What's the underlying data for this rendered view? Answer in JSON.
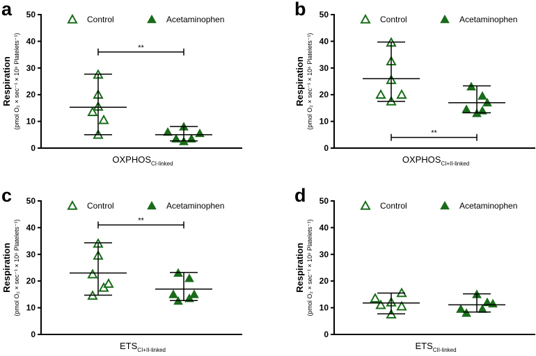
{
  "colors": {
    "marker": "#1a6b1a",
    "axis": "#000000"
  },
  "chart_data": [
    {
      "type": "scatter",
      "panel": "a",
      "ylabel": "Respiration",
      "ylabel_sub": "(pmol O₂ × sec⁻¹ × 10⁶ Platelets⁻¹)",
      "xlabel": "OXPHOS",
      "xlabel_sub": "CI-linked",
      "ylim": [
        0,
        50
      ],
      "yticks": [
        "0",
        "10",
        "20",
        "30",
        "40",
        "50"
      ],
      "legend": [
        "Control",
        "Acetaminophen"
      ],
      "legend_position": "top",
      "series": [
        {
          "name": "Control",
          "values": [
            27.5,
            20,
            15.5,
            13.5,
            10.5,
            5
          ],
          "mean": 15.3,
          "low": 5,
          "high": 27.7
        },
        {
          "name": "Acetaminophen",
          "values": [
            6,
            3.5,
            2.5,
            8,
            3.5,
            5.5
          ],
          "mean": 5,
          "low": 2.7,
          "high": 8.1
        }
      ],
      "significance": {
        "label": "**",
        "y": 36
      }
    },
    {
      "type": "scatter",
      "panel": "b",
      "ylabel": "Respiration",
      "ylabel_sub": "(pmol O₂ × sec⁻¹ × 10⁶ Platelets⁻¹)",
      "xlabel": "OXPHOS",
      "xlabel_sub": "CI+II-linked",
      "ylim": [
        0,
        50
      ],
      "yticks": [
        "0",
        "10",
        "20",
        "30",
        "40",
        "50"
      ],
      "legend": [
        "Control",
        "Acetaminophen"
      ],
      "legend_position": "top",
      "series": [
        {
          "name": "Control",
          "values": [
            39.5,
            32.5,
            25.5,
            20,
            20,
            17.5
          ],
          "mean": 26,
          "low": 17.5,
          "high": 39.7
        },
        {
          "name": "Acetaminophen",
          "values": [
            14.5,
            23,
            13,
            19.5,
            14,
            17
          ],
          "mean": 17,
          "low": 13.2,
          "high": 23.3
        }
      ],
      "significance": {
        "label": "**",
        "y": 4
      }
    },
    {
      "type": "scatter",
      "panel": "c",
      "ylabel": "Respiration",
      "ylabel_sub": "(pmol O₂ × sec⁻¹ × 10⁶ Platelets⁻¹)",
      "xlabel": "ETS",
      "xlabel_sub": "CI+II-linked",
      "ylim": [
        0,
        50
      ],
      "yticks": [
        "0",
        "10",
        "20",
        "30",
        "40",
        "50"
      ],
      "legend": [
        "Control",
        "Acetaminophen"
      ],
      "legend_position": "top",
      "series": [
        {
          "name": "Control",
          "values": [
            34,
            29.5,
            22.5,
            14.5,
            17.5,
            19
          ],
          "mean": 23,
          "low": 14.7,
          "high": 34.3
        },
        {
          "name": "Acetaminophen",
          "values": [
            15,
            23,
            12.5,
            21,
            13.5,
            15
          ],
          "mean": 17,
          "low": 12.7,
          "high": 23.2
        }
      ],
      "significance": {
        "label": "**",
        "y": 41
      }
    },
    {
      "type": "scatter",
      "panel": "d",
      "ylabel": "Respiration",
      "ylabel_sub": "(pmol O₂ × sec⁻¹ × 10⁶ Platelets⁻¹)",
      "xlabel": "ETS",
      "xlabel_sub": "CII-linked",
      "ylim": [
        0,
        50
      ],
      "yticks": [
        "0",
        "10",
        "20",
        "30",
        "40",
        "50"
      ],
      "legend": [
        "Control",
        "Acetaminophen"
      ],
      "legend_position": "top",
      "series": [
        {
          "name": "Control",
          "values": [
            13.5,
            11,
            12,
            7.5,
            15.5,
            10.5
          ],
          "mean": 11.8,
          "low": 7.7,
          "high": 15.5
        },
        {
          "name": "Acetaminophen",
          "values": [
            9.5,
            8,
            15,
            9.5,
            12,
            11.5
          ],
          "mean": 11.1,
          "low": 8.4,
          "high": 15.2
        }
      ],
      "significance": null
    }
  ]
}
